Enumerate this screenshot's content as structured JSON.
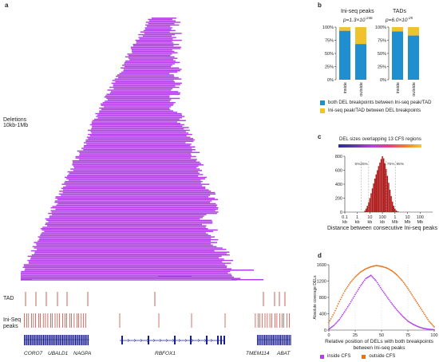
{
  "panel_labels": {
    "a": "a",
    "b": "b",
    "c": "c",
    "d": "d"
  },
  "panel_a": {
    "deletions_label_line1": "Deletions",
    "deletions_label_line2": "10kb-1Mb",
    "tad_label": "TAD",
    "iniseq_label_line1": "Ini-Seq",
    "iniseq_label_line2": "peaks",
    "genes": [
      "CORO7",
      "UBALD1",
      "NAGPA",
      "RBFOX1",
      "TMEM114",
      "ABAT"
    ],
    "colors": {
      "deletion": "#b340e6",
      "tad": "#c0392b",
      "peaks": "#c0392b",
      "gene": "#1a1f8f"
    }
  },
  "panel_b": {
    "left_title": "Ini-seq peaks",
    "left_pvalue": "p=1.3×10",
    "left_pvalue_exp": "-246",
    "right_title": "TADs",
    "right_pvalue": "p=6.0×10",
    "right_pvalue_exp": "-25",
    "legend_blue": "both DEL breakpoints between Ini-seq peak/TAD",
    "legend_yellow": "Ini-seq peak/TAD between DEL breakpoints",
    "colors": {
      "blue": "#1f8fd0",
      "yellow": "#f2c12e"
    }
  },
  "panel_c": {
    "title": "DEL sizes overlapping 13 CFS regions",
    "xlabel": "Distance between consecutive Ini-seq peaks",
    "percentiles": [
      "5%",
      "25%",
      "75%",
      "95%"
    ],
    "bar_color": "#b01c1c"
  },
  "panel_d": {
    "ylabel": "Absolute coverage DELs",
    "xlabel_line1": "Relative position of DELs with both breakpoints",
    "xlabel_line2": "between Ini-seq peaks",
    "legend_inside": "inside CFS",
    "legend_outside": "outside CFS",
    "colors": {
      "inside": "#b340e6",
      "outside": "#e8731c"
    }
  },
  "chart_data": [
    {
      "type": "bar",
      "stacked": true,
      "panel": "b-left",
      "title": "Ini-seq peaks",
      "categories": [
        "inside",
        "outside"
      ],
      "series": [
        {
          "values": [
            93,
            68
          ]
        },
        {
          "values": [
            7,
            32
          ]
        }
      ],
      "ylim": [
        0,
        100
      ],
      "yticks": [
        "0%",
        "25%",
        "50%",
        "75%",
        "100%"
      ]
    },
    {
      "type": "bar",
      "stacked": true,
      "panel": "b-right",
      "title": "TADs",
      "categories": [
        "inside",
        "outside"
      ],
      "series": [
        {
          "values": [
            92,
            84
          ]
        },
        {
          "values": [
            8,
            16
          ]
        }
      ],
      "ylim": [
        0,
        100
      ],
      "yticks": [
        "0%",
        "25%",
        "50%",
        "75%",
        "100%"
      ]
    },
    {
      "type": "bar",
      "panel": "c",
      "title": "DEL sizes overlapping 13 CFS regions",
      "xlabel": "Distance between consecutive Ini-seq peaks",
      "x_log": true,
      "xlim_kb": [
        0.1,
        100000
      ],
      "xticks": [
        "0.1 kb",
        "1 kb",
        "10 kb",
        "100 kb",
        "1 Mb",
        "10 Mb",
        "100 Mb"
      ],
      "ylim": [
        0,
        800
      ],
      "yticks": [
        0,
        200,
        400,
        600,
        800
      ],
      "log10_kb_bins": [
        0.6,
        0.7,
        0.8,
        0.9,
        1.0,
        1.1,
        1.2,
        1.3,
        1.4,
        1.5,
        1.6,
        1.7,
        1.8,
        1.9,
        2.0,
        2.1,
        2.2,
        2.3,
        2.4,
        2.5,
        2.6,
        2.7,
        2.8,
        2.9,
        3.0,
        3.1,
        3.2,
        3.3
      ],
      "counts": [
        20,
        50,
        90,
        140,
        200,
        270,
        340,
        410,
        480,
        540,
        600,
        660,
        710,
        760,
        800,
        770,
        700,
        620,
        520,
        420,
        320,
        230,
        150,
        90,
        50,
        25,
        12,
        5
      ],
      "percentile_lines_kb": {
        "5%": 2,
        "25%": 8,
        "75%": 200,
        "95%": 1100
      }
    },
    {
      "type": "scatter",
      "panel": "d",
      "xlabel": "Relative position of DELs with both breakpoints between Ini-seq peaks",
      "ylabel": "Absolute coverage DELs",
      "xlim": [
        0,
        100
      ],
      "ylim": [
        0,
        1600
      ],
      "xticks": [
        0,
        25,
        50,
        75,
        100
      ],
      "yticks": [
        0,
        400,
        800,
        1200,
        1600
      ],
      "series": [
        {
          "name": "inside CFS",
          "x": [
            0,
            5,
            10,
            15,
            20,
            25,
            30,
            35,
            40,
            45,
            50,
            55,
            60,
            65,
            70,
            75,
            80,
            85,
            90,
            95,
            100
          ],
          "y": [
            20,
            120,
            260,
            450,
            650,
            870,
            1080,
            1260,
            1340,
            1200,
            1000,
            820,
            640,
            480,
            340,
            220,
            140,
            80,
            40,
            20,
            10
          ]
        },
        {
          "name": "outside CFS",
          "x": [
            0,
            5,
            10,
            15,
            20,
            25,
            30,
            35,
            40,
            45,
            50,
            55,
            60,
            65,
            70,
            75,
            80,
            85,
            90,
            95,
            100
          ],
          "y": [
            180,
            420,
            700,
            950,
            1150,
            1300,
            1420,
            1500,
            1550,
            1580,
            1560,
            1520,
            1450,
            1340,
            1200,
            1020,
            820,
            620,
            420,
            220,
            80
          ]
        }
      ]
    }
  ]
}
